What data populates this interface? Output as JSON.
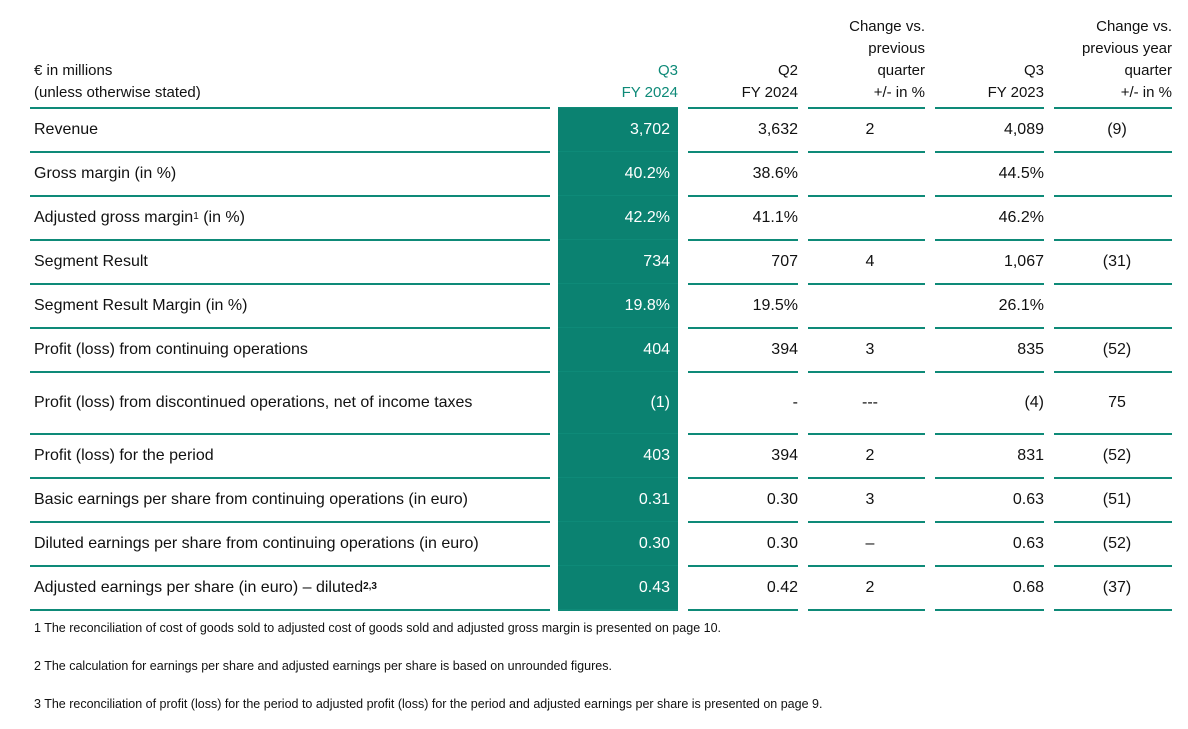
{
  "header": {
    "unit_line1": "€ in millions",
    "unit_line2": "(unless otherwise stated)",
    "col_q3_fy24": "Q3\nFY 2024",
    "col_q2_fy24": "Q2\nFY 2024",
    "col_change_prev_q": "Change vs.\nprevious\nquarter\n+/- in %",
    "col_q3_fy23": "Q3\nFY 2023",
    "col_change_prev_yq": "Change vs.\nprevious year\nquarter\n+/- in %"
  },
  "rows": [
    {
      "label": "Revenue",
      "q3_24": "3,702",
      "q2_24": "3,632",
      "chg_q": "2",
      "q3_23": "4,089",
      "chg_y": "(9)"
    },
    {
      "label": "Gross margin (in %)",
      "q3_24": "40.2%",
      "q2_24": "38.6%",
      "chg_q": "",
      "q3_23": "44.5%",
      "chg_y": ""
    },
    {
      "label": "Adjusted gross margin",
      "label_sup": "1",
      "label_suffix": " (in %)",
      "q3_24": "42.2%",
      "q2_24": "41.1%",
      "chg_q": "",
      "q3_23": "46.2%",
      "chg_y": ""
    },
    {
      "label": "Segment Result",
      "q3_24": "734",
      "q2_24": "707",
      "chg_q": "4",
      "q3_23": "1,067",
      "chg_y": "(31)"
    },
    {
      "label": "Segment Result Margin (in %)",
      "q3_24": "19.8%",
      "q2_24": "19.5%",
      "chg_q": "",
      "q3_23": "26.1%",
      "chg_y": ""
    },
    {
      "label": "Profit (loss) from continuing operations",
      "q3_24": "404",
      "q2_24": "394",
      "chg_q": "3",
      "q3_23": "835",
      "chg_y": "(52)"
    },
    {
      "label": "Profit (loss) from discontinued operations, net of income taxes",
      "q3_24": "(1)",
      "q2_24": "-",
      "chg_q": "---",
      "q3_23": "(4)",
      "chg_y": "75"
    },
    {
      "label": "Profit (loss) for the period",
      "q3_24": "403",
      "q2_24": "394",
      "chg_q": "2",
      "q3_23": "831",
      "chg_y": "(52)"
    },
    {
      "label": "Basic earnings per share from continuing operations (in euro)",
      "q3_24": "0.31",
      "q2_24": "0.30",
      "chg_q": "3",
      "q3_23": "0.63",
      "chg_y": "(51)"
    },
    {
      "label": "Diluted earnings per share from continuing operations (in euro)",
      "q3_24": "0.30",
      "q2_24": "0.30",
      "chg_q": "–",
      "q3_23": "0.63",
      "chg_y": "(52)"
    },
    {
      "label": "Adjusted earnings per share (in euro) – diluted",
      "label_sup": "2,3",
      "label_suffix": "",
      "q3_24": "0.43",
      "q2_24": "0.42",
      "chg_q": "2",
      "q3_23": "0.68",
      "chg_y": "(37)"
    }
  ],
  "footnotes": [
    "1 The reconciliation of cost of goods sold to adjusted cost of goods sold and adjusted gross margin is presented on page 10.",
    "2 The calculation for earnings per share and adjusted earnings per share is based on unrounded figures.",
    "3 The reconciliation of profit (loss) for the period to adjusted profit (loss) for the period and adjusted earnings per share is presented on page 9."
  ],
  "colors": {
    "accent": "#0b8271",
    "rule": "#0e8a78"
  }
}
